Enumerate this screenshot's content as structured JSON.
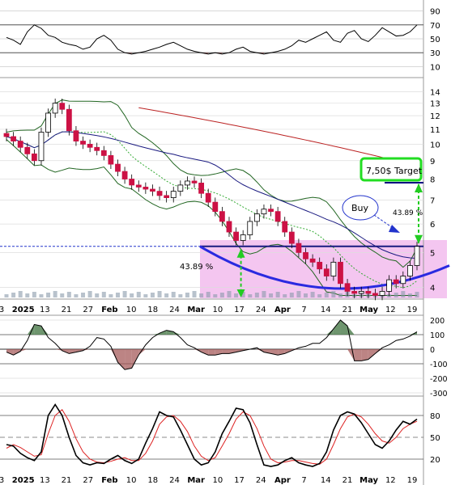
{
  "chart_data": [
    {
      "type": "line",
      "panel": "rsi",
      "y_ticks": [
        90,
        70,
        50,
        30,
        10
      ],
      "ylim": [
        0,
        100
      ],
      "series": [
        {
          "values": [
            52,
            48,
            42,
            60,
            70,
            65,
            55,
            52,
            45,
            42,
            40,
            35,
            38,
            50,
            55,
            48,
            35,
            30,
            28,
            30,
            32,
            35,
            38,
            42,
            45,
            40,
            35,
            32,
            30,
            28,
            30,
            28,
            30,
            35,
            38,
            32,
            30,
            28,
            30,
            32,
            35,
            40,
            48,
            45,
            50,
            55,
            60,
            48,
            45,
            58,
            62,
            50,
            46,
            55,
            66,
            60,
            54,
            55,
            60,
            70
          ]
        }
      ]
    },
    {
      "type": "candlestick",
      "panel": "price",
      "y_ticks": [
        14,
        13,
        12,
        11,
        10,
        9,
        8,
        7,
        6,
        5,
        4
      ],
      "scale": "log",
      "ylim": [
        3.75,
        15
      ],
      "x_tick_labels": [
        "3",
        "2025",
        "13",
        "21",
        "27",
        "Feb",
        "10",
        "18",
        "24",
        "Mar",
        "10",
        "17",
        "24",
        "Apr",
        "7",
        "14",
        "21",
        "May",
        "12",
        "19"
      ],
      "series_close": [
        10.5,
        10.2,
        9.8,
        9.4,
        9.0,
        10.8,
        12.2,
        13.0,
        12.5,
        10.9,
        10.2,
        10.0,
        9.8,
        9.6,
        9.3,
        8.8,
        8.4,
        8.0,
        7.7,
        7.6,
        7.5,
        7.4,
        7.2,
        7.1,
        7.4,
        7.7,
        7.9,
        7.8,
        7.3,
        6.9,
        6.5,
        6.1,
        5.7,
        5.4,
        5.6,
        6.1,
        6.4,
        6.6,
        6.5,
        6.1,
        5.7,
        5.3,
        5.0,
        4.8,
        4.7,
        4.5,
        4.3,
        4.7,
        4.1,
        3.9,
        3.85,
        3.9,
        3.85,
        3.8,
        3.9,
        4.2,
        4.1,
        4.3,
        4.6,
        5.2
      ],
      "reference_line": 5.2,
      "annotations": {
        "target_label": "7,50$ Target",
        "target_value": 7.5,
        "buy_label": "Buy",
        "pct_left": "43.89 %",
        "pct_right": "43.89 %"
      }
    },
    {
      "type": "bar",
      "panel": "histogram",
      "y_ticks": [
        "200",
        "100",
        "0",
        "-100",
        "-200",
        "-300"
      ],
      "ylim": [
        -300,
        200
      ],
      "values": [
        -20,
        -40,
        -15,
        60,
        170,
        160,
        80,
        40,
        -10,
        -30,
        -20,
        -10,
        20,
        80,
        70,
        20,
        -90,
        -140,
        -130,
        -40,
        30,
        80,
        110,
        130,
        120,
        80,
        30,
        10,
        -20,
        -40,
        -40,
        -30,
        -30,
        -20,
        -10,
        0,
        10,
        -20,
        -30,
        -40,
        -30,
        -10,
        10,
        20,
        40,
        40,
        80,
        140,
        200,
        160,
        -80,
        -80,
        -70,
        -30,
        10,
        30,
        60,
        70,
        90,
        120
      ]
    },
    {
      "type": "line",
      "panel": "stochastic",
      "y_ticks": [
        "80",
        "50",
        "20"
      ],
      "ylim": [
        0,
        100
      ],
      "series": [
        {
          "values": [
            40,
            38,
            28,
            22,
            18,
            30,
            80,
            95,
            80,
            50,
            25,
            15,
            12,
            15,
            14,
            20,
            25,
            18,
            14,
            20,
            42,
            62,
            85,
            80,
            78,
            60,
            40,
            20,
            12,
            15,
            30,
            55,
            72,
            90,
            88,
            70,
            40,
            12,
            10,
            12,
            18,
            22,
            15,
            12,
            10,
            14,
            30,
            60,
            80,
            85,
            82,
            70,
            55,
            40,
            35,
            45,
            60,
            72,
            68,
            75
          ]
        },
        {
          "values": [
            35,
            40,
            36,
            30,
            24,
            26,
            55,
            80,
            88,
            72,
            48,
            30,
            20,
            16,
            15,
            17,
            20,
            22,
            18,
            18,
            28,
            45,
            68,
            78,
            80,
            72,
            58,
            38,
            24,
            18,
            22,
            38,
            55,
            75,
            85,
            80,
            62,
            38,
            20,
            15,
            16,
            18,
            18,
            16,
            14,
            13,
            20,
            40,
            62,
            78,
            82,
            78,
            68,
            55,
            45,
            42,
            50,
            62,
            68,
            72
          ]
        }
      ]
    }
  ]
}
